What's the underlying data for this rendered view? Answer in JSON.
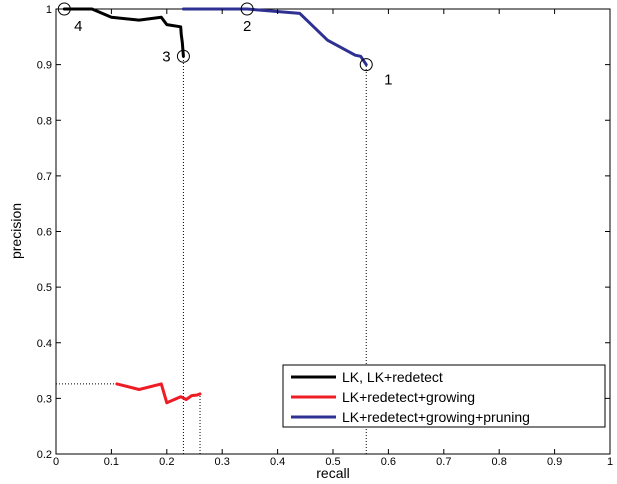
{
  "chart_data": {
    "type": "line",
    "xlabel": "recall",
    "ylabel": "precision",
    "xlim": [
      0,
      1
    ],
    "ylim": [
      0.2,
      1
    ],
    "xticks": [
      0,
      0.1,
      0.2,
      0.3,
      0.4,
      0.5,
      0.6,
      0.7,
      0.8,
      0.9,
      1
    ],
    "yticks": [
      0.2,
      0.3,
      0.4,
      0.5,
      0.6,
      0.7,
      0.8,
      0.9,
      1
    ],
    "xtick_labels": [
      "0",
      "0.1",
      "0.2",
      "0.3",
      "0.4",
      "0.5",
      "0.6",
      "0.7",
      "0.8",
      "0.9",
      "1"
    ],
    "ytick_labels": [
      "0.2",
      "0.3",
      "0.4",
      "0.5",
      "0.6",
      "0.7",
      "0.8",
      "0.9",
      "1"
    ],
    "grid": false,
    "legend_position": "bottom-right",
    "series": [
      {
        "name": "LK,  LK+redetect",
        "color": "#000000",
        "x": [
          0.015,
          0.065,
          0.1,
          0.15,
          0.19,
          0.2,
          0.225,
          0.226,
          0.228,
          0.23
        ],
        "y": [
          1.0,
          1.0,
          0.985,
          0.98,
          0.985,
          0.972,
          0.968,
          0.955,
          0.94,
          0.915
        ]
      },
      {
        "name": "LK+redetect+growing",
        "color": "#ee1c24",
        "x": [
          0.11,
          0.15,
          0.19,
          0.2,
          0.225,
          0.235,
          0.245,
          0.255,
          0.26
        ],
        "y": [
          0.326,
          0.316,
          0.326,
          0.292,
          0.303,
          0.298,
          0.305,
          0.306,
          0.308
        ]
      },
      {
        "name": "LK+redetect+growing+pruning",
        "color": "#2e3192",
        "x": [
          0.23,
          0.345,
          0.44,
          0.49,
          0.54,
          0.55,
          0.56
        ],
        "y": [
          1.0,
          1.0,
          0.992,
          0.944,
          0.917,
          0.915,
          0.9
        ]
      }
    ],
    "markers": [
      {
        "label": "1",
        "x": 0.56,
        "y": 0.9
      },
      {
        "label": "2",
        "x": 0.345,
        "y": 1.0
      },
      {
        "label": "3",
        "x": 0.23,
        "y": 0.915
      },
      {
        "label": "4",
        "x": 0.015,
        "y": 1.0
      }
    ],
    "reference_lines": [
      {
        "kind": "vertical",
        "x": 0.23,
        "y_from": 0.2,
        "y_to": 0.915
      },
      {
        "kind": "vertical",
        "x": 0.26,
        "y_from": 0.2,
        "y_to": 0.308
      },
      {
        "kind": "vertical",
        "x": 0.56,
        "y_from": 0.2,
        "y_to": 0.9
      },
      {
        "kind": "horizontal",
        "y": 1.0,
        "x_from": 0,
        "x_to": 0.23
      },
      {
        "kind": "horizontal",
        "y": 0.326,
        "x_from": 0,
        "x_to": 0.11
      }
    ]
  }
}
